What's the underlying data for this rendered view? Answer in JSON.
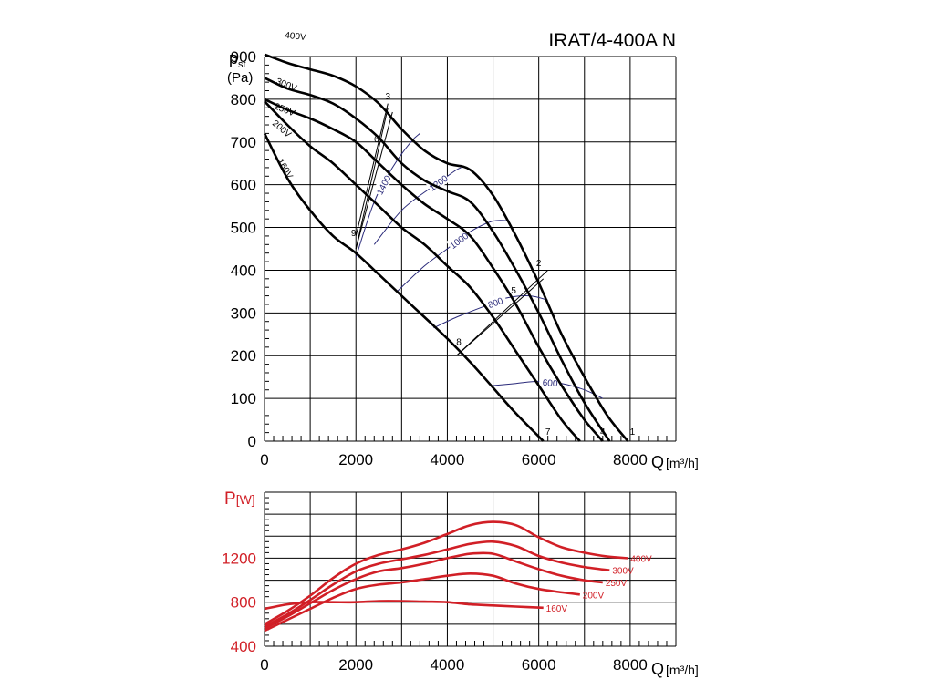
{
  "title": "IRAT/4-400A N",
  "colors": {
    "grid": "#000000",
    "pressure": "#000000",
    "speed": "#2a2a7a",
    "power": "#d11f26"
  },
  "chart_data": [
    {
      "type": "line",
      "name": "static-pressure",
      "ylabel_main": "p",
      "ylabel_sub": "st",
      "ylabel_unit": "(Pa)",
      "xlabel": "Q",
      "xunit": "[m³/h]",
      "xlim": [
        0,
        9000
      ],
      "ylim": [
        0,
        900
      ],
      "xticks": [
        0,
        2000,
        4000,
        6000,
        8000
      ],
      "xtick_labels": [
        "0",
        "2000",
        "4000",
        "6000",
        "8000"
      ],
      "yticks": [
        0,
        100,
        200,
        300,
        400,
        500,
        600,
        700,
        800,
        900
      ],
      "ytick_labels": [
        "0",
        "100",
        "200",
        "300",
        "400",
        "500",
        "600",
        "700",
        "800",
        "900"
      ],
      "series": [
        {
          "name": "400V",
          "x": [
            0,
            500,
            1000,
            1500,
            2000,
            2500,
            3000,
            3500,
            4000,
            4500,
            5000,
            5500,
            6000,
            6500,
            7000,
            7500,
            7950
          ],
          "y": [
            905,
            885,
            870,
            855,
            830,
            790,
            730,
            680,
            650,
            635,
            575,
            480,
            370,
            250,
            150,
            60,
            0
          ]
        },
        {
          "name": "300V",
          "x": [
            0,
            500,
            1000,
            1500,
            2000,
            2500,
            3000,
            3500,
            4000,
            4500,
            5000,
            5500,
            6000,
            6500,
            7000,
            7550
          ],
          "y": [
            850,
            825,
            810,
            790,
            755,
            710,
            650,
            610,
            585,
            560,
            490,
            400,
            300,
            190,
            90,
            0
          ]
        },
        {
          "name": "250V",
          "x": [
            0,
            500,
            1000,
            1500,
            2000,
            2500,
            3000,
            3500,
            4000,
            4500,
            5000,
            5500,
            6000,
            6500,
            7000,
            7400
          ],
          "y": [
            800,
            775,
            755,
            730,
            700,
            650,
            600,
            555,
            520,
            480,
            405,
            320,
            220,
            130,
            50,
            0
          ]
        },
        {
          "name": "200V",
          "x": [
            0,
            500,
            1000,
            1500,
            2000,
            2500,
            3000,
            3500,
            4000,
            4500,
            5000,
            5500,
            6000,
            6500,
            6900
          ],
          "y": [
            795,
            740,
            690,
            650,
            600,
            550,
            500,
            460,
            410,
            360,
            290,
            210,
            130,
            50,
            0
          ]
        },
        {
          "name": "160V",
          "x": [
            0,
            500,
            1000,
            1500,
            2000,
            2500,
            3000,
            3500,
            4000,
            4500,
            5000,
            5500,
            6100
          ],
          "y": [
            720,
            615,
            540,
            480,
            440,
            390,
            340,
            290,
            240,
            185,
            125,
            65,
            0
          ]
        }
      ],
      "speed_curves": [
        {
          "name": "1400",
          "x": [
            2000,
            2400,
            2800,
            3200,
            3400
          ],
          "y": [
            430,
            560,
            640,
            700,
            720
          ]
        },
        {
          "name": "1200",
          "x": [
            2400,
            3000,
            3600,
            4000,
            4200,
            4300
          ],
          "y": [
            460,
            540,
            590,
            620,
            635,
            640
          ]
        },
        {
          "name": "1000",
          "x": [
            2900,
            3500,
            4000,
            4500,
            5000,
            5400
          ],
          "y": [
            350,
            410,
            450,
            490,
            515,
            515
          ]
        },
        {
          "name": "800",
          "x": [
            3700,
            4200,
            4800,
            5300,
            5800,
            6200
          ],
          "y": [
            265,
            290,
            315,
            335,
            340,
            330
          ]
        },
        {
          "name": "600",
          "x": [
            5000,
            5500,
            6000,
            6500,
            7000,
            7400
          ],
          "y": [
            130,
            135,
            140,
            135,
            120,
            100
          ]
        }
      ],
      "operating_lines": [
        {
          "x": [
            2000,
            2800
          ],
          "y": [
            450,
            770
          ]
        },
        {
          "x": [
            2000,
            2700
          ],
          "y": [
            450,
            780
          ]
        },
        {
          "x": [
            2000,
            2700
          ],
          "y": [
            480,
            790
          ]
        },
        {
          "x": [
            4200,
            6200
          ],
          "y": [
            200,
            400
          ]
        },
        {
          "x": [
            4200,
            6100
          ],
          "y": [
            200,
            380
          ]
        }
      ],
      "point_labels": [
        {
          "label": "1",
          "x": 8050,
          "y": 15
        },
        {
          "label": "2",
          "x": 6000,
          "y": 410
        },
        {
          "label": "3",
          "x": 2700,
          "y": 800
        },
        {
          "label": "4",
          "x": 7400,
          "y": 15
        },
        {
          "label": "5",
          "x": 5450,
          "y": 345
        },
        {
          "label": "6",
          "x": 2450,
          "y": 700
        },
        {
          "label": "7",
          "x": 6200,
          "y": 15
        },
        {
          "label": "8",
          "x": 4250,
          "y": 225
        },
        {
          "label": "9",
          "x": 1950,
          "y": 480
        }
      ]
    },
    {
      "type": "line",
      "name": "power",
      "ylabel_main": "P",
      "ylabel_unit": "[W]",
      "xlabel": "Q",
      "xunit": "[m³/h]",
      "xlim": [
        0,
        9000
      ],
      "ylim": [
        400,
        1800
      ],
      "xticks": [
        0,
        2000,
        4000,
        6000,
        8000
      ],
      "xtick_labels": [
        "0",
        "2000",
        "4000",
        "6000",
        "8000"
      ],
      "yticks": [
        400,
        800,
        1200
      ],
      "ytick_labels": [
        "400",
        "800",
        "1200"
      ],
      "series": [
        {
          "name": "400V",
          "x": [
            0,
            500,
            1000,
            1500,
            2000,
            2500,
            3000,
            3500,
            4000,
            4500,
            5000,
            5500,
            6000,
            6500,
            7000,
            7500,
            7950
          ],
          "y": [
            600,
            720,
            860,
            1020,
            1150,
            1230,
            1280,
            1340,
            1420,
            1500,
            1530,
            1500,
            1390,
            1300,
            1250,
            1215,
            1200
          ]
        },
        {
          "name": "300V",
          "x": [
            0,
            500,
            1000,
            1500,
            2000,
            2500,
            3000,
            3500,
            4000,
            4500,
            5000,
            5500,
            6000,
            6500,
            7000,
            7550
          ],
          "y": [
            580,
            690,
            820,
            960,
            1080,
            1150,
            1190,
            1230,
            1280,
            1330,
            1350,
            1310,
            1220,
            1160,
            1120,
            1090
          ]
        },
        {
          "name": "250V",
          "x": [
            0,
            500,
            1000,
            1500,
            2000,
            2500,
            3000,
            3500,
            4000,
            4500,
            5000,
            5500,
            6000,
            6500,
            7000,
            7400
          ],
          "y": [
            560,
            670,
            790,
            910,
            1010,
            1080,
            1110,
            1150,
            1200,
            1240,
            1240,
            1170,
            1100,
            1040,
            1000,
            980
          ]
        },
        {
          "name": "200V",
          "x": [
            0,
            500,
            1000,
            1500,
            2000,
            2500,
            3000,
            3500,
            4000,
            4500,
            5000,
            5500,
            6000,
            6500,
            6900
          ],
          "y": [
            540,
            640,
            740,
            840,
            920,
            960,
            980,
            1010,
            1040,
            1060,
            1040,
            970,
            920,
            890,
            870
          ]
        },
        {
          "name": "160V",
          "x": [
            0,
            500,
            1000,
            1500,
            2000,
            2500,
            3000,
            3500,
            4000,
            4500,
            5000,
            5500,
            6100
          ],
          "y": [
            740,
            780,
            800,
            800,
            800,
            810,
            810,
            805,
            800,
            780,
            770,
            760,
            750
          ]
        }
      ]
    }
  ]
}
